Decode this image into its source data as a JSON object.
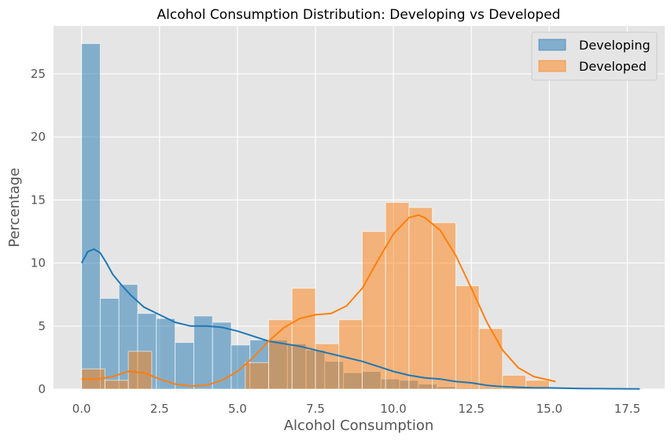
{
  "chart_data": {
    "type": "histogram",
    "title": "Alcohol Consumption Distribution: Developing vs Developed",
    "xlabel": "Alcohol Consumption",
    "ylabel": "Percentage",
    "xlim": [
      -0.9,
      18.7
    ],
    "ylim": [
      0,
      28.8
    ],
    "xticks": [
      0.0,
      2.5,
      5.0,
      7.5,
      10.0,
      12.5,
      15.0,
      17.5
    ],
    "xtick_labels": [
      "0.0",
      "2.5",
      "5.0",
      "7.5",
      "10.0",
      "12.5",
      "15.0",
      "17.5"
    ],
    "yticks": [
      0,
      5,
      10,
      15,
      20,
      25
    ],
    "ytick_labels": [
      "0",
      "5",
      "10",
      "15",
      "20",
      "25"
    ],
    "grid": true,
    "legend_position": "top-right",
    "series": [
      {
        "name": "Developing",
        "color": "#1f77b4",
        "bin_width": 0.6,
        "bin_start": 0.0,
        "values": [
          27.4,
          7.2,
          8.3,
          6.0,
          5.6,
          3.7,
          5.8,
          5.3,
          3.5,
          3.9,
          3.9,
          3.6,
          3.1,
          2.2,
          1.3,
          1.4,
          0.8,
          0.7,
          0.4,
          0.2,
          0.1,
          0.1,
          0.1,
          0.1,
          0.05,
          0.05,
          0.05,
          0.05,
          0.05,
          0.05
        ],
        "kde": [
          [
            0.0,
            10.0
          ],
          [
            0.2,
            10.9
          ],
          [
            0.4,
            11.1
          ],
          [
            0.6,
            10.8
          ],
          [
            0.8,
            10.0
          ],
          [
            1.0,
            9.1
          ],
          [
            1.3,
            8.2
          ],
          [
            1.6,
            7.4
          ],
          [
            2.0,
            6.5
          ],
          [
            2.5,
            5.9
          ],
          [
            3.0,
            5.3
          ],
          [
            3.5,
            5.0
          ],
          [
            4.0,
            5.0
          ],
          [
            4.5,
            4.9
          ],
          [
            5.0,
            4.6
          ],
          [
            5.5,
            4.2
          ],
          [
            6.0,
            3.8
          ],
          [
            6.5,
            3.6
          ],
          [
            7.0,
            3.4
          ],
          [
            7.5,
            3.1
          ],
          [
            8.0,
            2.8
          ],
          [
            8.5,
            2.5
          ],
          [
            9.0,
            2.2
          ],
          [
            9.5,
            1.8
          ],
          [
            10.0,
            1.4
          ],
          [
            10.5,
            1.1
          ],
          [
            11.0,
            0.9
          ],
          [
            11.5,
            0.8
          ],
          [
            12.0,
            0.6
          ],
          [
            12.5,
            0.5
          ],
          [
            13.0,
            0.3
          ],
          [
            13.5,
            0.2
          ],
          [
            14.0,
            0.15
          ],
          [
            14.5,
            0.1
          ],
          [
            15.0,
            0.1
          ],
          [
            16.0,
            0.05
          ],
          [
            17.0,
            0.03
          ],
          [
            17.9,
            0.02
          ]
        ]
      },
      {
        "name": "Developed",
        "color": "#ff7f0e",
        "bin_width": 0.75,
        "bin_start": 0.0,
        "values": [
          1.6,
          0.7,
          3.0,
          0.0,
          0.0,
          0.0,
          0.0,
          2.1,
          5.5,
          8.0,
          3.6,
          5.5,
          12.5,
          14.8,
          14.4,
          13.2,
          8.2,
          4.8,
          1.1,
          0.7
        ],
        "kde": [
          [
            0.0,
            0.8
          ],
          [
            0.5,
            0.8
          ],
          [
            1.0,
            1.0
          ],
          [
            1.5,
            1.4
          ],
          [
            2.0,
            1.3
          ],
          [
            2.5,
            0.8
          ],
          [
            3.0,
            0.4
          ],
          [
            3.5,
            0.25
          ],
          [
            4.0,
            0.3
          ],
          [
            4.5,
            0.7
          ],
          [
            5.0,
            1.4
          ],
          [
            5.5,
            2.5
          ],
          [
            6.0,
            3.8
          ],
          [
            6.5,
            4.9
          ],
          [
            7.0,
            5.6
          ],
          [
            7.5,
            5.9
          ],
          [
            8.0,
            6.0
          ],
          [
            8.5,
            6.6
          ],
          [
            9.0,
            8.0
          ],
          [
            9.5,
            10.2
          ],
          [
            10.0,
            12.3
          ],
          [
            10.5,
            13.6
          ],
          [
            10.8,
            13.8
          ],
          [
            11.0,
            13.6
          ],
          [
            11.5,
            12.6
          ],
          [
            12.0,
            10.6
          ],
          [
            12.5,
            8.0
          ],
          [
            13.0,
            5.3
          ],
          [
            13.5,
            3.1
          ],
          [
            14.0,
            1.7
          ],
          [
            14.5,
            1.0
          ],
          [
            15.2,
            0.6
          ]
        ]
      }
    ]
  }
}
